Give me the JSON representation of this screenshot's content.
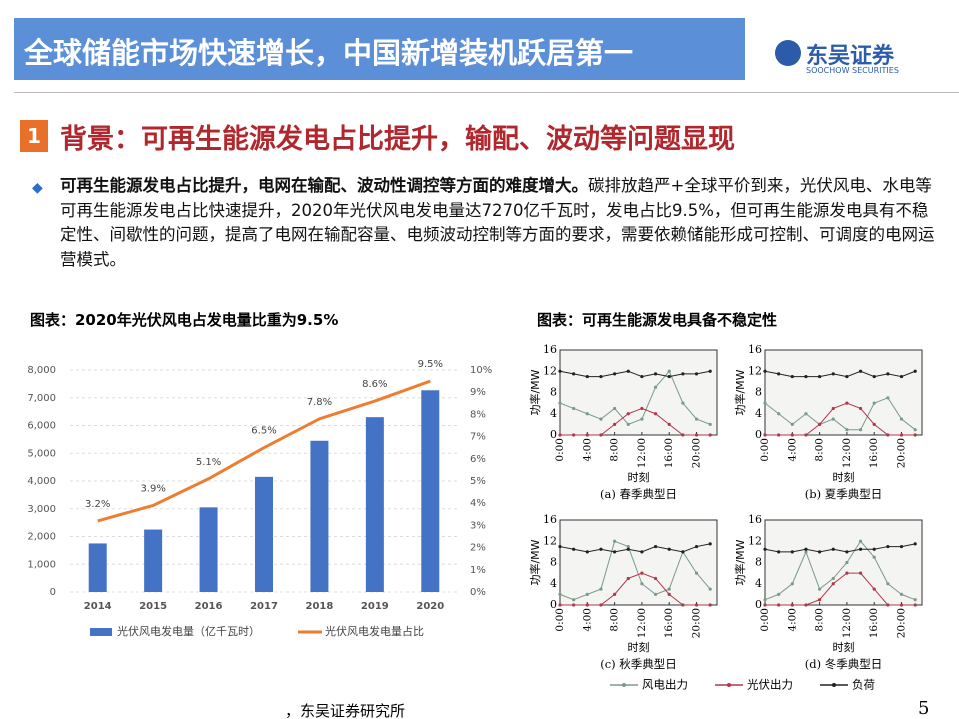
{
  "header": {
    "title": "全球储能市场快速增长，中国新增装机跃居第一",
    "logo": "东吴证券",
    "logo_en": "SOOCHOW SECURITIES"
  },
  "section": {
    "number": "1",
    "title": "背景：可再生能源发电占比提升，输配、波动等问题显现"
  },
  "bullet": {
    "bold": "可再生能源发电占比提升，电网在输配、波动性调控等方面的难度增大。",
    "text": "碳排放趋严+全球平价到来，光伏风电、水电等可再生能源发电占比快速提升，2020年光伏风电发电量达7270亿千瓦时，发电占比9.5%，但可再生能源发电具有不稳定性、间歇性的问题，提高了电网在输配容量、电频波动控制等方面的要求，需要依赖储能形成可控制、可调度的电网运营模式。"
  },
  "captions": [
    "图表：2020年光伏风电占发电量比重为9.5%",
    "图表：可再生能源发电具备不稳定性"
  ],
  "panel_legend": [
    {
      "name": "风电出力",
      "color": "#7a9a8c"
    },
    {
      "name": "光伏出力",
      "color": "#b0384a"
    },
    {
      "name": "负荷",
      "color": "#222222"
    }
  ],
  "source": "，东吴证券研究所",
  "page": "5",
  "chart_data": [
    {
      "type": "combo",
      "categories": [
        "2014",
        "2015",
        "2016",
        "2017",
        "2018",
        "2019",
        "2020"
      ],
      "series": [
        {
          "name": "光伏风电发电量（亿千瓦时）",
          "type": "bar",
          "color": "#4472c4",
          "values": [
            1750,
            2250,
            3050,
            4150,
            5450,
            6300,
            7270
          ]
        },
        {
          "name": "光伏风电发电量占比",
          "type": "line",
          "axis": "y2",
          "color": "#ed7d31",
          "values": [
            3.2,
            3.9,
            5.1,
            6.5,
            7.8,
            8.6,
            9.5
          ],
          "value_labels": [
            "3.2%",
            "3.9%",
            "5.1%",
            "6.5%",
            "7.8%",
            "8.6%",
            "9.5%"
          ]
        }
      ],
      "ylim": [
        0,
        8000
      ],
      "yticks": [
        0,
        {
          "value": 1000,
          "label": "1,000"
        },
        {
          "value": 2000,
          "label": "2,000"
        },
        {
          "value": 3000,
          "label": "3,000"
        },
        {
          "value": 4000,
          "label": "4,000"
        },
        {
          "value": 5000,
          "label": "5,000"
        },
        {
          "value": 6000,
          "label": "6,000"
        },
        {
          "value": 7000,
          "label": "7,000"
        },
        {
          "value": 8000,
          "label": "8,000"
        }
      ],
      "y2lim": [
        0,
        10
      ],
      "y2ticks": [
        {
          "value": 0,
          "label": "0%"
        },
        {
          "value": 1,
          "label": "1%"
        },
        {
          "value": 2,
          "label": "2%"
        },
        {
          "value": 3,
          "label": "3%"
        },
        {
          "value": 4,
          "label": "4%"
        },
        {
          "value": 5,
          "label": "5%"
        },
        {
          "value": 6,
          "label": "6%"
        },
        {
          "value": 7,
          "label": "7%"
        },
        {
          "value": 8,
          "label": "8%"
        },
        {
          "value": 9,
          "label": "9%"
        },
        {
          "value": 10,
          "label": "10%"
        }
      ],
      "grid": true
    },
    {
      "type": "line",
      "caption": "(a) 春季典型日",
      "xlabel": "时刻",
      "ylabel": "功率/MW",
      "x": [
        0,
        2,
        4,
        6,
        8,
        10,
        12,
        14,
        16,
        18,
        20,
        22
      ],
      "xlim": [
        0,
        23
      ],
      "xticks": [
        {
          "value": 0,
          "label": "0:00"
        },
        {
          "value": 4,
          "label": "4:00"
        },
        {
          "value": 8,
          "label": "8:00"
        },
        {
          "value": 12,
          "label": "12:00"
        },
        {
          "value": 16,
          "label": "16:00"
        },
        {
          "value": 20,
          "label": "20:00"
        }
      ],
      "ylim": [
        0,
        16
      ],
      "yticks": [
        0,
        4,
        8,
        12,
        16
      ],
      "series": [
        {
          "values": [
            6,
            5,
            4,
            3,
            5,
            2,
            3,
            9,
            12,
            6,
            3,
            2
          ]
        },
        {
          "values": [
            0,
            0,
            0,
            0,
            2,
            4,
            5,
            4,
            2,
            0,
            0,
            0
          ]
        },
        {
          "values": [
            12,
            11.5,
            11,
            11,
            11.5,
            12,
            11,
            11.5,
            11,
            11.5,
            11.5,
            12
          ]
        }
      ]
    },
    {
      "type": "line",
      "caption": "(b) 夏季典型日",
      "xlabel": "时刻",
      "ylabel": "功率/MW",
      "x": [
        0,
        2,
        4,
        6,
        8,
        10,
        12,
        14,
        16,
        18,
        20,
        22
      ],
      "xlim": [
        0,
        23
      ],
      "xticks": [
        {
          "value": 0,
          "label": "0:00"
        },
        {
          "value": 4,
          "label": "4:00"
        },
        {
          "value": 8,
          "label": "8:00"
        },
        {
          "value": 12,
          "label": "12:00"
        },
        {
          "value": 16,
          "label": "16:00"
        },
        {
          "value": 20,
          "label": "20:00"
        }
      ],
      "ylim": [
        0,
        16
      ],
      "yticks": [
        0,
        4,
        8,
        12,
        16
      ],
      "series": [
        {
          "values": [
            6,
            4,
            2,
            4,
            2,
            3,
            1,
            1,
            6,
            7,
            3,
            1
          ]
        },
        {
          "values": [
            0,
            0,
            0,
            0,
            2,
            5,
            6,
            5,
            2,
            0,
            0,
            0
          ]
        },
        {
          "values": [
            12,
            11.5,
            11,
            11,
            11,
            11.5,
            11,
            12,
            11,
            11.5,
            11,
            12
          ]
        }
      ]
    },
    {
      "type": "line",
      "caption": "(c) 秋季典型日",
      "xlabel": "时刻",
      "ylabel": "功率/MW",
      "x": [
        0,
        2,
        4,
        6,
        8,
        10,
        12,
        14,
        16,
        18,
        20,
        22
      ],
      "xlim": [
        0,
        23
      ],
      "xticks": [
        {
          "value": 0,
          "label": "0:00"
        },
        {
          "value": 4,
          "label": "4:00"
        },
        {
          "value": 8,
          "label": "8:00"
        },
        {
          "value": 12,
          "label": "12:00"
        },
        {
          "value": 16,
          "label": "16:00"
        },
        {
          "value": 20,
          "label": "20:00"
        }
      ],
      "ylim": [
        0,
        16
      ],
      "yticks": [
        0,
        4,
        8,
        12,
        16
      ],
      "series": [
        {
          "values": [
            2,
            1,
            2,
            3,
            12,
            11,
            4,
            2,
            3,
            10,
            6,
            3
          ]
        },
        {
          "values": [
            0,
            0,
            0,
            0,
            2,
            5,
            6,
            5,
            2,
            0,
            0,
            0
          ]
        },
        {
          "values": [
            11,
            10.5,
            10,
            10.5,
            10,
            10.5,
            10,
            11,
            10.5,
            10,
            11,
            11.5
          ]
        }
      ]
    },
    {
      "type": "line",
      "caption": "(d) 冬季典型日",
      "xlabel": "时刻",
      "ylabel": "功率/MW",
      "x": [
        0,
        2,
        4,
        6,
        8,
        10,
        12,
        14,
        16,
        18,
        20,
        22
      ],
      "xlim": [
        0,
        23
      ],
      "xticks": [
        {
          "value": 0,
          "label": "0:00"
        },
        {
          "value": 4,
          "label": "4:00"
        },
        {
          "value": 8,
          "label": "8:00"
        },
        {
          "value": 12,
          "label": "12:00"
        },
        {
          "value": 16,
          "label": "16:00"
        },
        {
          "value": 20,
          "label": "20:00"
        }
      ],
      "ylim": [
        0,
        16
      ],
      "yticks": [
        0,
        4,
        8,
        12,
        16
      ],
      "series": [
        {
          "values": [
            1,
            2,
            4,
            10,
            3,
            5,
            8,
            12,
            9,
            4,
            2,
            1
          ]
        },
        {
          "values": [
            0,
            0,
            0,
            0,
            1,
            4,
            6,
            6,
            3,
            0,
            0,
            0
          ]
        },
        {
          "values": [
            10.5,
            10,
            10,
            10.5,
            10,
            10.5,
            10,
            10.5,
            10.5,
            11,
            11,
            11.5
          ]
        }
      ]
    }
  ]
}
